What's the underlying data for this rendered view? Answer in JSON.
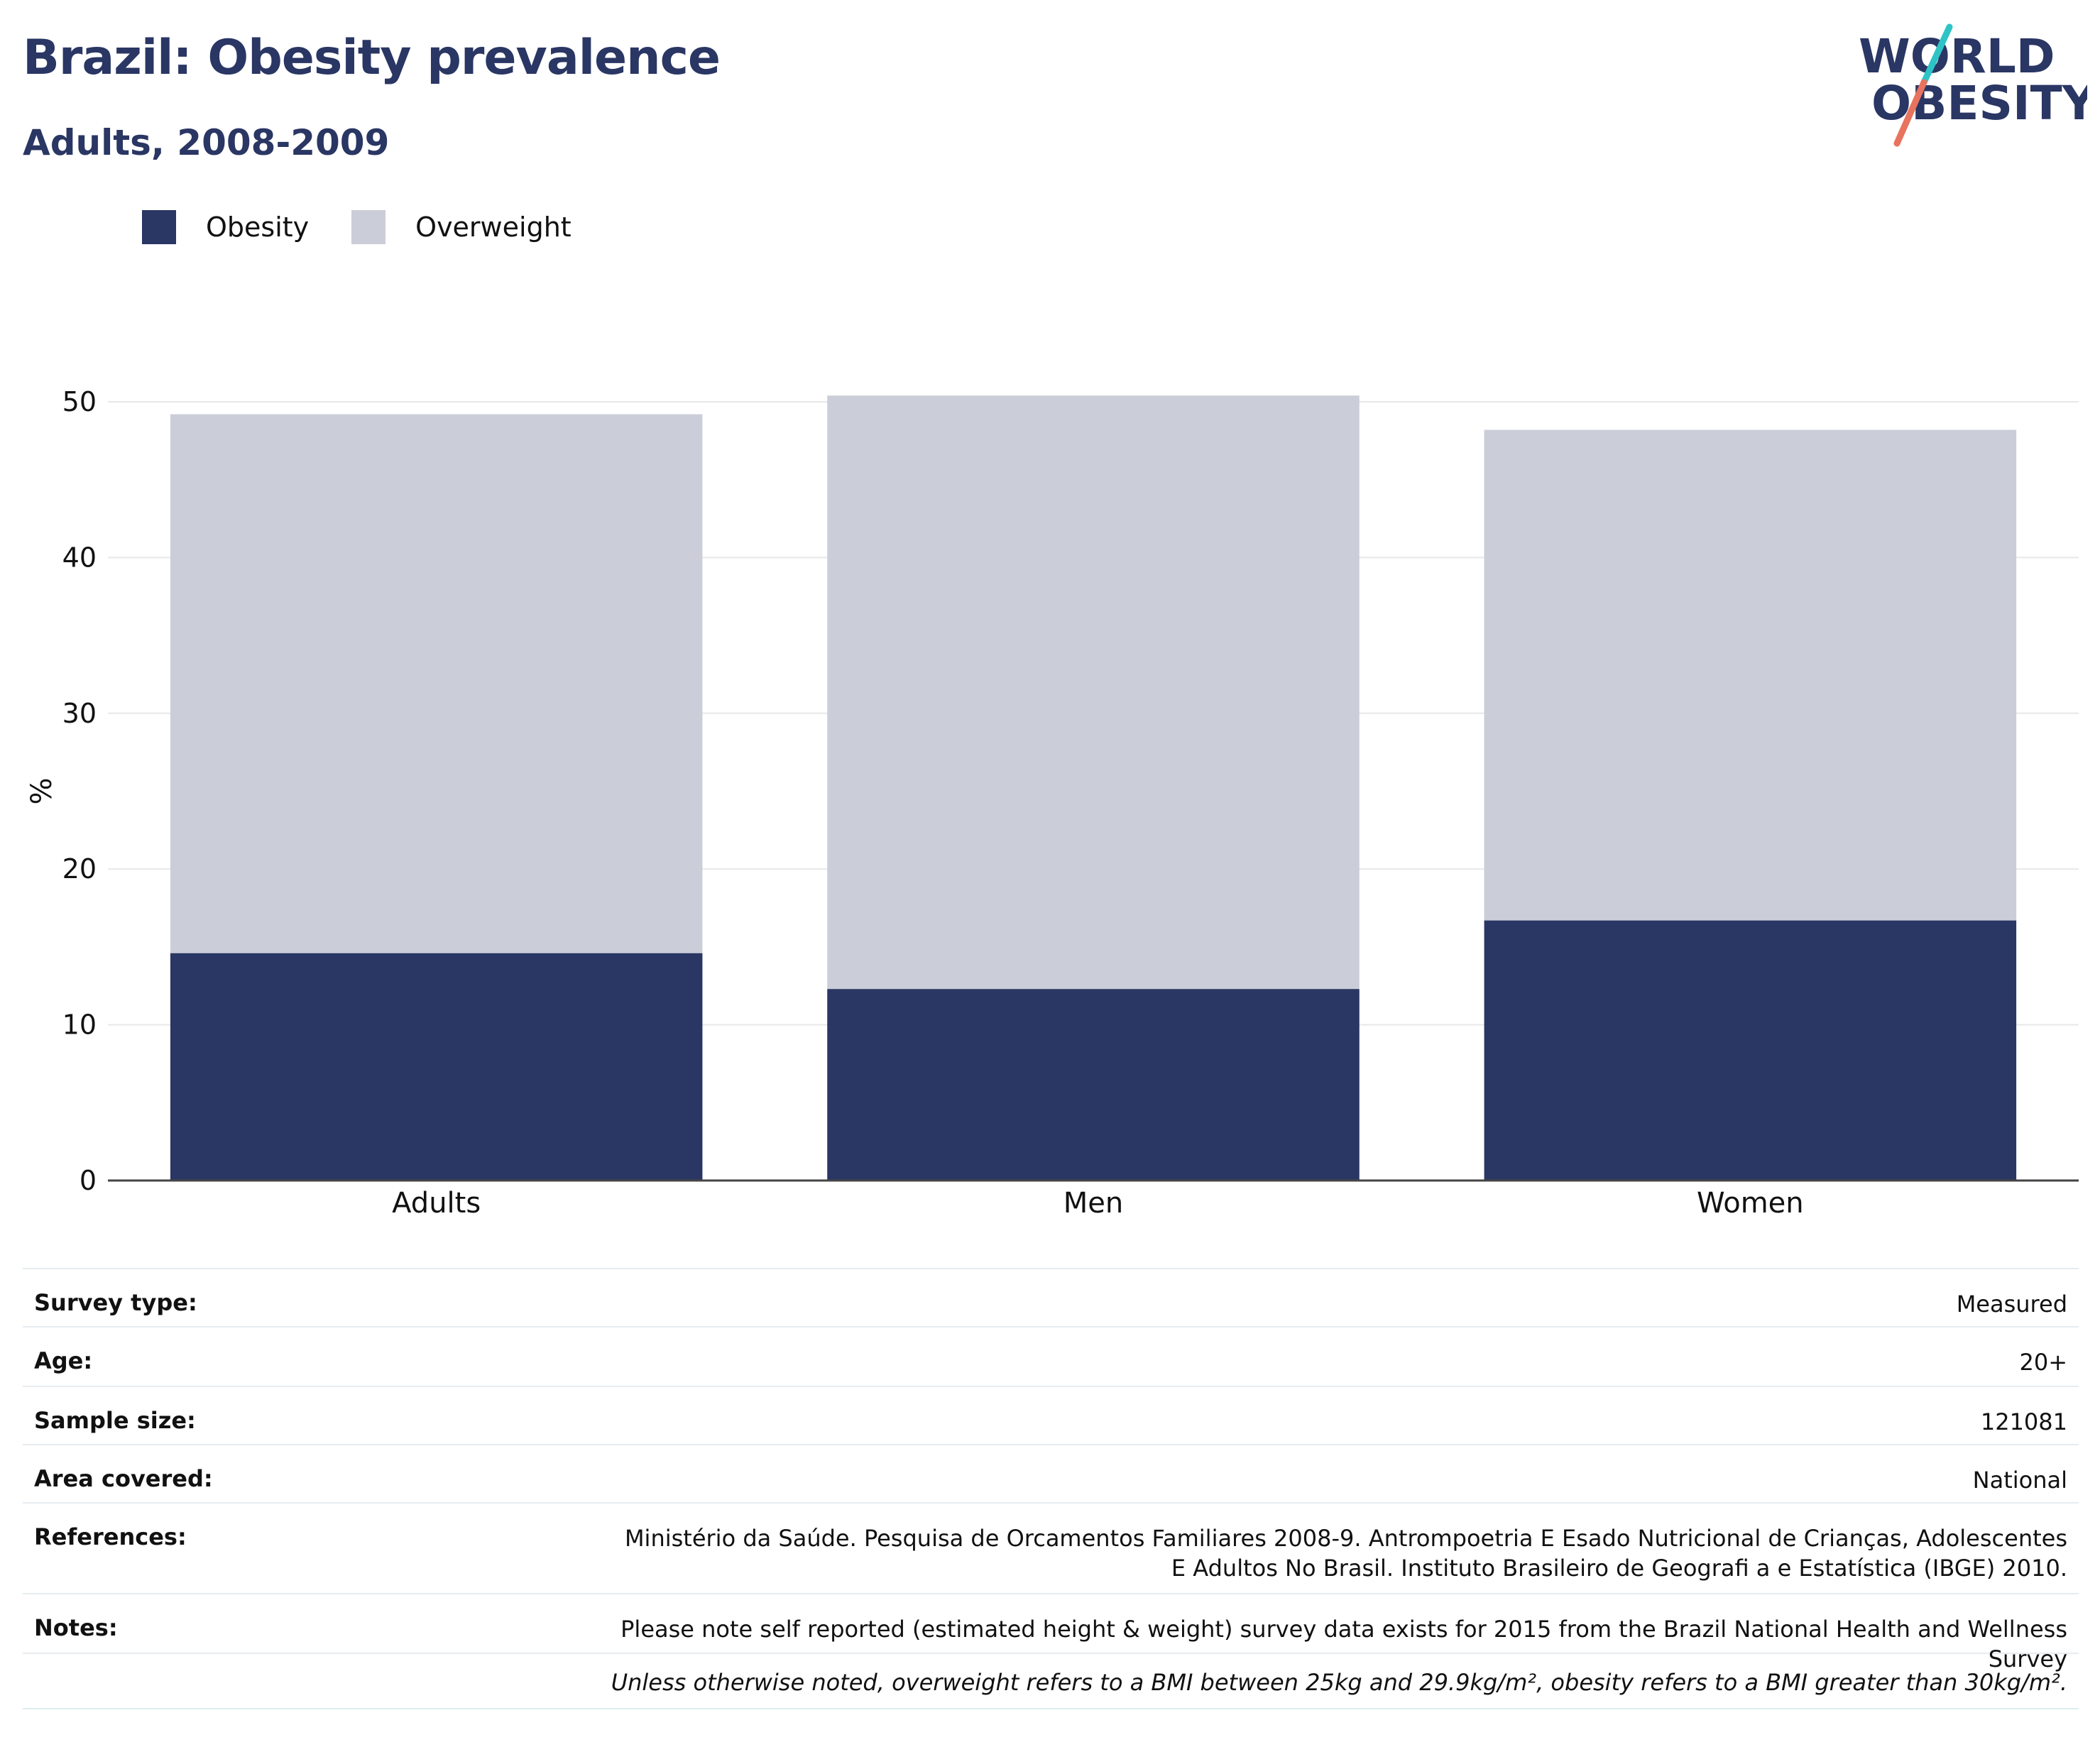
{
  "title": "Brazil: Obesity prevalence",
  "subtitle": "Adults, 2008-2009",
  "logo": {
    "line1": "WORLD",
    "line2": "OBESITY",
    "accent_colors": [
      "#2ec4c6",
      "#e8735e"
    ]
  },
  "legend": [
    {
      "label": "Obesity",
      "color": "#2a3663"
    },
    {
      "label": "Overweight",
      "color": "#cbcdd8"
    }
  ],
  "chart_data": {
    "type": "bar",
    "stacked": true,
    "categories": [
      "Adults",
      "Men",
      "Women"
    ],
    "series": [
      {
        "name": "Obesity",
        "values": [
          14.6,
          12.3,
          16.7
        ],
        "color": "#2a3663"
      },
      {
        "name": "Overweight",
        "values": [
          34.6,
          38.1,
          31.5
        ],
        "color": "#cbcdd8"
      }
    ],
    "title": "Brazil: Obesity prevalence",
    "subtitle": "Adults, 2008-2009",
    "xlabel": "",
    "ylabel": "%",
    "ylim": [
      0,
      50
    ],
    "yticks": [
      0,
      10,
      20,
      30,
      40,
      50
    ],
    "grid": true,
    "legend_position": "top-left"
  },
  "info": [
    {
      "label": "Survey type:",
      "value": "Measured"
    },
    {
      "label": "Age:",
      "value": "20+"
    },
    {
      "label": "Sample size:",
      "value": "121081"
    },
    {
      "label": "Area covered:",
      "value": "National"
    },
    {
      "label": "References:",
      "value": "Ministério da Saúde. Pesquisa de Orcamentos Familiares 2008-9. Antrompoetria E Esado Nutricional de Crianças, Adolescentes E Adultos No Brasil. Instituto Brasileiro de Geografi a e Estatística (IBGE) 2010."
    },
    {
      "label": "Notes:",
      "value": "Please note self reported (estimated height & weight) survey data exists for 2015 from the Brazil National Health and Wellness Survey"
    }
  ],
  "footnote": "Unless otherwise noted, overweight refers to a BMI between 25kg and 29.9kg/m², obesity refers to a BMI greater than 30kg/m²."
}
